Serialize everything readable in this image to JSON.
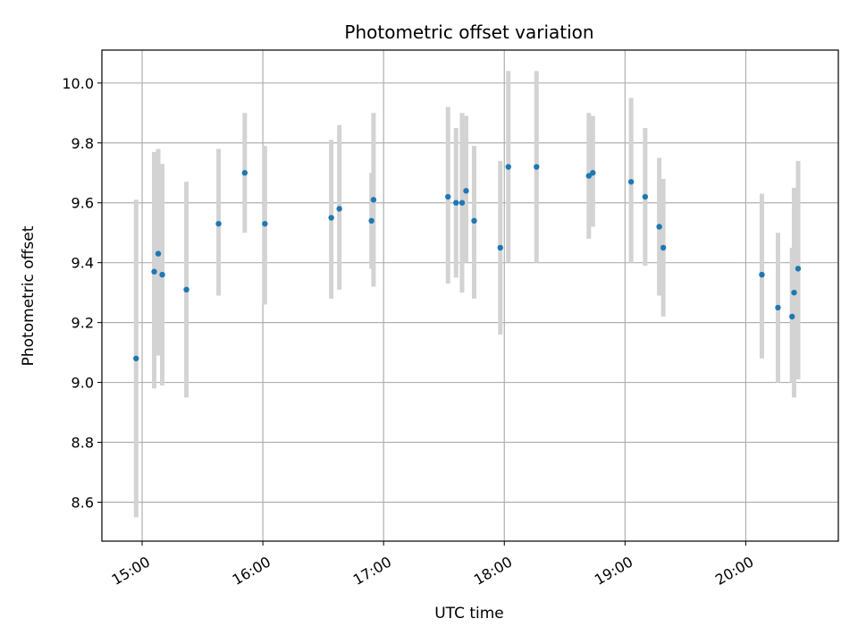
{
  "chart_data": {
    "type": "scatter",
    "title": "Photometric offset variation",
    "xlabel": "UTC time",
    "ylabel": "Photometric offset",
    "xlim": [
      "14:40",
      "20:46"
    ],
    "ylim": [
      8.47,
      10.11
    ],
    "grid": true,
    "x_ticks": [
      "15:00",
      "16:00",
      "17:00",
      "18:00",
      "19:00",
      "20:00"
    ],
    "y_ticks": [
      8.6,
      8.8,
      9.0,
      9.2,
      9.4,
      9.6,
      9.8,
      10.0
    ],
    "y_tick_labels": [
      "8.6",
      "8.8",
      "9.0",
      "9.2",
      "9.4",
      "9.6",
      "9.8",
      "10.0"
    ],
    "colors": {
      "points": "#1f77b4",
      "errorbars": "#d3d3d3",
      "grid": "#b0b0b0"
    },
    "series": [
      {
        "points": [
          {
            "x": "14:57",
            "y": 9.08,
            "low": 8.55,
            "high": 9.61
          },
          {
            "x": "15:06",
            "y": 9.37,
            "low": 8.98,
            "high": 9.77
          },
          {
            "x": "15:08",
            "y": 9.43,
            "low": 9.09,
            "high": 9.78
          },
          {
            "x": "15:10",
            "y": 9.36,
            "low": 8.99,
            "high": 9.73
          },
          {
            "x": "15:22",
            "y": 9.31,
            "low": 8.95,
            "high": 9.67
          },
          {
            "x": "15:38",
            "y": 9.53,
            "low": 9.29,
            "high": 9.78
          },
          {
            "x": "15:51",
            "y": 9.7,
            "low": 9.5,
            "high": 9.9
          },
          {
            "x": "16:01",
            "y": 9.53,
            "low": 9.26,
            "high": 9.79
          },
          {
            "x": "16:34",
            "y": 9.55,
            "low": 9.28,
            "high": 9.81
          },
          {
            "x": "16:38",
            "y": 9.58,
            "low": 9.31,
            "high": 9.86
          },
          {
            "x": "16:54",
            "y": 9.54,
            "low": 9.38,
            "high": 9.7
          },
          {
            "x": "16:55",
            "y": 9.61,
            "low": 9.32,
            "high": 9.9
          },
          {
            "x": "17:32",
            "y": 9.62,
            "low": 9.33,
            "high": 9.92
          },
          {
            "x": "17:36",
            "y": 9.6,
            "low": 9.35,
            "high": 9.85
          },
          {
            "x": "17:39",
            "y": 9.6,
            "low": 9.3,
            "high": 9.9
          },
          {
            "x": "17:41",
            "y": 9.64,
            "low": 9.4,
            "high": 9.89
          },
          {
            "x": "17:45",
            "y": 9.54,
            "low": 9.28,
            "high": 9.79
          },
          {
            "x": "17:58",
            "y": 9.45,
            "low": 9.16,
            "high": 9.74
          },
          {
            "x": "18:02",
            "y": 9.72,
            "low": 9.4,
            "high": 10.04
          },
          {
            "x": "18:16",
            "y": 9.72,
            "low": 9.4,
            "high": 10.04
          },
          {
            "x": "18:42",
            "y": 9.69,
            "low": 9.48,
            "high": 9.9
          },
          {
            "x": "18:44",
            "y": 9.7,
            "low": 9.52,
            "high": 9.89
          },
          {
            "x": "19:03",
            "y": 9.67,
            "low": 9.4,
            "high": 9.95
          },
          {
            "x": "19:10",
            "y": 9.62,
            "low": 9.39,
            "high": 9.85
          },
          {
            "x": "19:17",
            "y": 9.52,
            "low": 9.29,
            "high": 9.75
          },
          {
            "x": "19:19",
            "y": 9.45,
            "low": 9.22,
            "high": 9.68
          },
          {
            "x": "20:08",
            "y": 9.36,
            "low": 9.08,
            "high": 9.63
          },
          {
            "x": "20:16",
            "y": 9.25,
            "low": 9.0,
            "high": 9.5
          },
          {
            "x": "20:23",
            "y": 9.22,
            "low": 9.0,
            "high": 9.45
          },
          {
            "x": "20:24",
            "y": 9.3,
            "low": 8.95,
            "high": 9.65
          },
          {
            "x": "20:26",
            "y": 9.38,
            "low": 9.01,
            "high": 9.74
          }
        ]
      }
    ]
  }
}
